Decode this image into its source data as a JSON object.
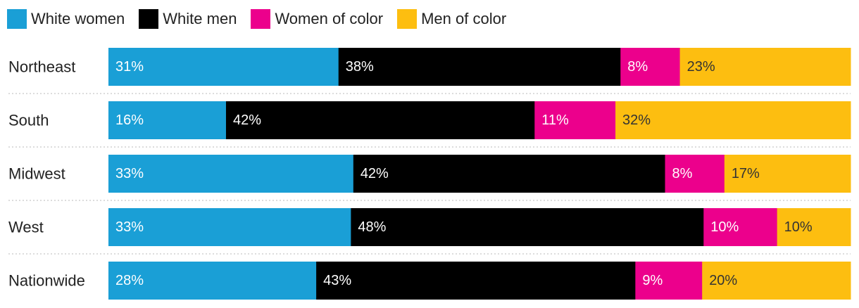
{
  "chart_data": {
    "type": "bar",
    "orientation": "horizontal",
    "stacked": true,
    "normalized_percent": true,
    "title": "",
    "xlabel": "",
    "ylabel": "",
    "xlim": [
      0,
      100
    ],
    "legend_position": "top-left",
    "grid": false,
    "categories": [
      "Northeast",
      "South",
      "Midwest",
      "West",
      "Nationwide"
    ],
    "series": [
      {
        "name": "White women",
        "color": "#1a9fd6",
        "text_color": "#ffffff",
        "values": [
          31,
          16,
          33,
          33,
          28
        ],
        "labels": [
          "31%",
          "16%",
          "33%",
          "33%",
          "28%"
        ]
      },
      {
        "name": "White men",
        "color": "#000000",
        "text_color": "#ffffff",
        "values": [
          38,
          42,
          42,
          48,
          43
        ],
        "labels": [
          "38%",
          "42%",
          "42%",
          "48%",
          "43%"
        ]
      },
      {
        "name": "Women of color",
        "color": "#ec008c",
        "text_color": "#ffffff",
        "values": [
          8,
          11,
          8,
          10,
          9
        ],
        "labels": [
          "8%",
          "11%",
          "8%",
          "10%",
          "9%"
        ]
      },
      {
        "name": "Men of color",
        "color": "#fdbe10",
        "text_color": "#333333",
        "values": [
          23,
          32,
          17,
          10,
          20
        ],
        "labels": [
          "23%",
          "32%",
          "17%",
          "10%",
          "20%"
        ]
      }
    ]
  }
}
